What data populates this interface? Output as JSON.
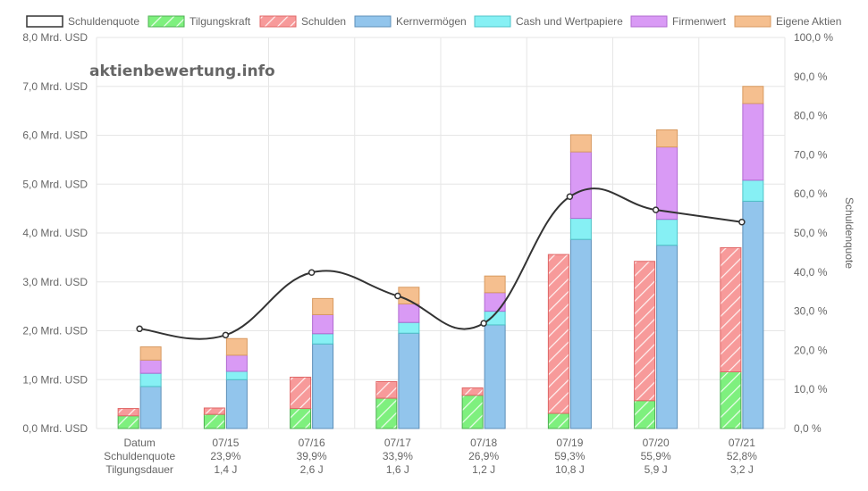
{
  "watermark": "aktienbewertung.info",
  "chart_data": {
    "type": "bar",
    "legend": [
      {
        "key": "schuldenquote",
        "label": "Schuldenquote",
        "color": "#ffffff",
        "border": "#333333",
        "hatch": false
      },
      {
        "key": "tilgungskraft",
        "label": "Tilgungskraft",
        "color": "#7ef07e",
        "border": "#4caf50",
        "hatch": true
      },
      {
        "key": "schulden",
        "label": "Schulden",
        "color": "#f79a9a",
        "border": "#e06666",
        "hatch": true
      },
      {
        "key": "kernvermoegen",
        "label": "Kernvermögen",
        "color": "#92c5ec",
        "border": "#5d8fb8",
        "hatch": false
      },
      {
        "key": "cash",
        "label": "Cash und Wertpapiere",
        "color": "#86f0f4",
        "border": "#4fc3c8",
        "hatch": false
      },
      {
        "key": "firmenwert",
        "label": "Firmenwert",
        "color": "#d99af5",
        "border": "#b06ad0",
        "hatch": false
      },
      {
        "key": "eigene_aktien",
        "label": "Eigene Aktien",
        "color": "#f5bf8f",
        "border": "#d89a60",
        "hatch": false
      }
    ],
    "categories": [
      "Datum",
      "07/15",
      "07/16",
      "07/17",
      "07/18",
      "07/19",
      "07/20",
      "07/21"
    ],
    "row_labels": [
      "Schuldenquote",
      "Tilgungsdauer"
    ],
    "schuldenquote_labels": [
      "23,9%",
      "39,9%",
      "33,9%",
      "26,9%",
      "59,3%",
      "55,9%",
      "52,8%"
    ],
    "tilgungsdauer_labels": [
      "1,4 J",
      "2,6 J",
      "1,6 J",
      "1,2 J",
      "10,8 J",
      "5,9 J",
      "3,2 J"
    ],
    "series": [
      {
        "name": "Schuldenquote",
        "axis": "right",
        "type": "line",
        "values": [
          25.5,
          23.9,
          39.9,
          33.9,
          26.9,
          59.3,
          55.9,
          52.8
        ]
      },
      {
        "name": "Tilgungskraft",
        "stack": "left",
        "values": [
          0.26,
          0.29,
          0.41,
          0.62,
          0.68,
          0.31,
          0.57,
          1.16
        ]
      },
      {
        "name": "Schulden",
        "stack": "left",
        "values": [
          0.15,
          0.13,
          0.64,
          0.34,
          0.15,
          3.25,
          2.85,
          2.54
        ]
      },
      {
        "name": "Kernvermögen",
        "stack": "right",
        "values": [
          0.86,
          1.0,
          1.73,
          1.95,
          2.12,
          3.87,
          3.75,
          4.65
        ]
      },
      {
        "name": "Cash und Wertpapiere",
        "stack": "right",
        "values": [
          0.27,
          0.17,
          0.21,
          0.22,
          0.28,
          0.43,
          0.53,
          0.43
        ]
      },
      {
        "name": "Firmenwert",
        "stack": "right",
        "values": [
          0.27,
          0.33,
          0.39,
          0.38,
          0.38,
          1.36,
          1.48,
          1.57
        ]
      },
      {
        "name": "Eigene Aktien",
        "stack": "right",
        "values": [
          0.27,
          0.34,
          0.33,
          0.34,
          0.34,
          0.35,
          0.35,
          0.35
        ]
      }
    ],
    "y_left": {
      "min": 0,
      "max": 8,
      "step": 1,
      "ticks": [
        "0,0 Mrd. USD",
        "1,0 Mrd. USD",
        "2,0 Mrd. USD",
        "3,0 Mrd. USD",
        "4,0 Mrd. USD",
        "5,0 Mrd. USD",
        "6,0 Mrd. USD",
        "7,0 Mrd. USD",
        "8,0 Mrd. USD"
      ]
    },
    "y_right": {
      "min": 0,
      "max": 100,
      "step": 10,
      "label": "Schuldenquote",
      "ticks": [
        "0,0 %",
        "10,0 %",
        "20,0 %",
        "30,0 %",
        "40,0 %",
        "50,0 %",
        "60,0 %",
        "70,0 %",
        "80,0 %",
        "90,0 %",
        "100,0 %"
      ]
    },
    "grid": true
  }
}
